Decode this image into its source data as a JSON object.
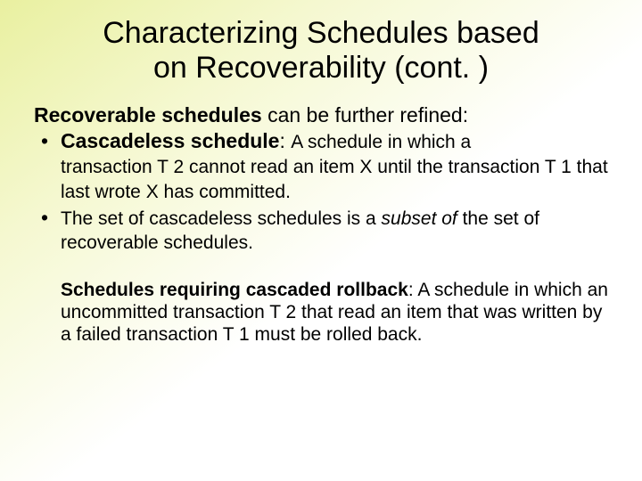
{
  "title_line1": "Characterizing Schedules based",
  "title_line2": "on Recoverability (cont. )",
  "intro_bold": "Recoverable schedules",
  "intro_rest": " can be further refined:",
  "bullet1_bold": "Cascadeless schedule",
  "bullet1_mid": ": ",
  "bullet1_def_a": "A schedule in which a",
  "bullet1_def_b": "transaction T 2 cannot read an item X until the transaction T 1 that last wrote X has committed.",
  "bullet2_a": "The set of cascadeless schedules is a ",
  "bullet2_italic": "subset of",
  "bullet2_b": " the set of recoverable schedules.",
  "para2_bold": "Schedules requiring cascaded rollback",
  "para2_rest": ": A schedule in which an uncommitted transaction T 2 that read an item that was written by a failed transaction T 1 must be rolled back.",
  "colors": {
    "bg_gradient_start": "#e9f0a0",
    "bg_gradient_end": "#ffffff",
    "text": "#000000"
  },
  "fontsizes": {
    "title": 34,
    "body": 23,
    "sub": 21
  }
}
